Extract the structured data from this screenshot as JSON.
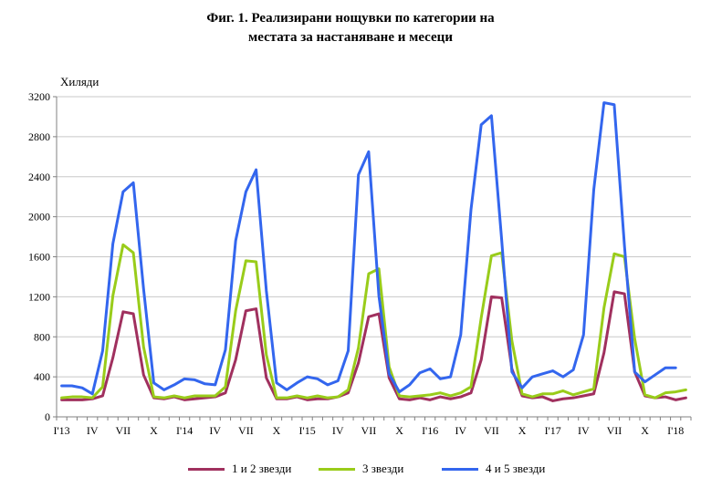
{
  "chart_data": {
    "type": "line",
    "title": [
      "Фиг. 1. Реализирани нощувки по категории на",
      "местата за настаняване и месеци"
    ],
    "ylabel": "Хиляди",
    "ylim": [
      0,
      3200
    ],
    "yticks": [
      0,
      400,
      800,
      1200,
      1600,
      2000,
      2400,
      2800,
      3200
    ],
    "grid": true,
    "legend_position": "bottom",
    "x_tick_labels": [
      {
        "index": 0,
        "label": "I'13"
      },
      {
        "index": 3,
        "label": "IV"
      },
      {
        "index": 6,
        "label": "VII"
      },
      {
        "index": 9,
        "label": "X"
      },
      {
        "index": 12,
        "label": "I'14"
      },
      {
        "index": 15,
        "label": "IV"
      },
      {
        "index": 18,
        "label": "VII"
      },
      {
        "index": 21,
        "label": "X"
      },
      {
        "index": 24,
        "label": "I'15"
      },
      {
        "index": 27,
        "label": "IV"
      },
      {
        "index": 30,
        "label": "VII"
      },
      {
        "index": 33,
        "label": "X"
      },
      {
        "index": 36,
        "label": "I'16"
      },
      {
        "index": 39,
        "label": "IV"
      },
      {
        "index": 42,
        "label": "VII"
      },
      {
        "index": 45,
        "label": "X"
      },
      {
        "index": 48,
        "label": "I'17"
      },
      {
        "index": 51,
        "label": "IV"
      },
      {
        "index": 54,
        "label": "VII"
      },
      {
        "index": 57,
        "label": "X"
      },
      {
        "index": 60,
        "label": "I'18"
      }
    ],
    "series": [
      {
        "name": "1 и 2 звезди",
        "color": "#a0305e",
        "values": [
          170,
          170,
          170,
          180,
          210,
          590,
          1050,
          1030,
          420,
          190,
          180,
          200,
          170,
          180,
          190,
          200,
          240,
          570,
          1060,
          1080,
          390,
          180,
          180,
          200,
          170,
          180,
          180,
          200,
          240,
          540,
          1000,
          1030,
          390,
          180,
          170,
          190,
          170,
          200,
          180,
          200,
          240,
          570,
          1200,
          1190,
          480,
          210,
          190,
          200,
          160,
          180,
          190,
          210,
          230,
          640,
          1250,
          1230,
          450,
          210,
          190,
          200,
          170,
          190
        ]
      },
      {
        "name": "3 звезди",
        "color": "#99cc1a",
        "values": [
          190,
          200,
          200,
          190,
          300,
          1210,
          1720,
          1640,
          700,
          200,
          190,
          210,
          190,
          210,
          210,
          210,
          300,
          1060,
          1560,
          1550,
          620,
          190,
          190,
          210,
          190,
          210,
          190,
          200,
          270,
          690,
          1430,
          1480,
          500,
          210,
          200,
          210,
          220,
          240,
          210,
          240,
          300,
          990,
          1610,
          1640,
          760,
          230,
          200,
          230,
          230,
          260,
          220,
          250,
          280,
          1090,
          1630,
          1600,
          780,
          220,
          190,
          240,
          250,
          270
        ]
      },
      {
        "name": "4 и 5 звезди",
        "color": "#3366ee",
        "values": [
          310,
          310,
          290,
          230,
          660,
          1730,
          2250,
          2340,
          1280,
          340,
          270,
          320,
          380,
          370,
          330,
          320,
          670,
          1760,
          2250,
          2470,
          1260,
          340,
          270,
          340,
          400,
          380,
          320,
          360,
          660,
          2420,
          2650,
          1210,
          430,
          250,
          320,
          440,
          480,
          380,
          400,
          820,
          2070,
          2920,
          3010,
          1770,
          450,
          290,
          400,
          430,
          460,
          400,
          470,
          820,
          2270,
          3140,
          3120,
          1710,
          450,
          350,
          420,
          490,
          490
        ]
      }
    ]
  }
}
